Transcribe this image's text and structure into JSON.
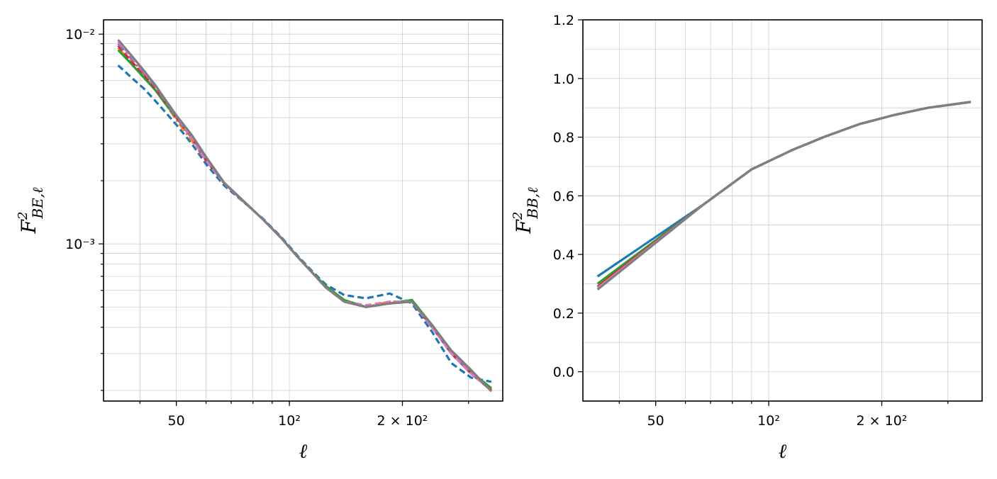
{
  "chart_data": [
    {
      "type": "line",
      "title": "",
      "xlabel": "ℓ",
      "ylabel": "F²_{BE,ℓ}",
      "xscale": "log",
      "yscale": "log",
      "xlim": [
        32,
        370
      ],
      "ylim": [
        0.000178,
        0.0117
      ],
      "grid": "major and minor",
      "x_ticks": [
        {
          "value": 50,
          "label": "50"
        },
        {
          "value": 100,
          "label": "10²"
        },
        {
          "value": 200,
          "label": "2 × 10²"
        }
      ],
      "y_ticks": [
        {
          "value": 0.01,
          "label": "10⁻²"
        },
        {
          "value": 0.001,
          "label": "10⁻³"
        }
      ],
      "x": [
        35,
        38,
        41,
        44,
        47,
        50,
        55,
        60,
        67,
        75,
        85,
        95,
        105,
        115,
        125,
        140,
        160,
        185,
        212,
        240,
        270,
        305,
        345
      ],
      "series": [
        {
          "color": "#1f77b4",
          "linestyle": "dashed",
          "values": [
            0.0071,
            0.0062,
            0.0055,
            0.0048,
            0.0042,
            0.0037,
            0.003,
            0.0024,
            0.0019,
            0.0016,
            0.00132,
            0.00108,
            0.00088,
            0.00074,
            0.00064,
            0.00057,
            0.00055,
            0.00058,
            0.00052,
            0.00038,
            0.00027,
            0.00023,
            0.00022
          ]
        },
        {
          "color": "#ff7f0e",
          "linestyle": "dashdot",
          "values": [
            0.0086,
            0.0073,
            0.0063,
            0.0054,
            0.0046,
            0.0039,
            0.0031,
            0.0025,
            0.00195,
            0.00161,
            0.00131,
            0.00107,
            0.00087,
            0.00073,
            0.00062,
            0.00053,
            0.0005,
            0.00053,
            0.00053,
            0.0004,
            0.0003,
            0.00024,
            0.000202
          ]
        },
        {
          "color": "#2ca02c",
          "linestyle": "solid",
          "values": [
            0.0084,
            0.0072,
            0.0062,
            0.0054,
            0.0046,
            0.004,
            0.0032,
            0.0025,
            0.00195,
            0.00161,
            0.00131,
            0.00107,
            0.00087,
            0.00073,
            0.00063,
            0.00054,
            0.0005,
            0.00052,
            0.00054,
            0.00041,
            0.0003,
            0.000245,
            0.000205
          ]
        },
        {
          "color": "#d62728",
          "linestyle": "dashed",
          "values": [
            0.0088,
            0.0074,
            0.0064,
            0.0055,
            0.0047,
            0.004,
            0.0032,
            0.0025,
            0.00195,
            0.00161,
            0.00131,
            0.00107,
            0.00087,
            0.00073,
            0.00062,
            0.00053,
            0.0005,
            0.00052,
            0.00053,
            0.0004,
            0.0003,
            0.00024,
            0.000201
          ]
        },
        {
          "color": "#9467bd",
          "linestyle": "dashdot",
          "values": [
            0.009,
            0.0076,
            0.0065,
            0.0056,
            0.0047,
            0.004,
            0.0032,
            0.0025,
            0.00195,
            0.00161,
            0.00131,
            0.00107,
            0.00087,
            0.00073,
            0.00062,
            0.00053,
            0.0005,
            0.00052,
            0.00053,
            0.0004,
            0.0003,
            0.00024,
            0.0002
          ]
        },
        {
          "color": "#e377c2",
          "linestyle": "dashed",
          "values": [
            0.0092,
            0.0078,
            0.0066,
            0.0057,
            0.0048,
            0.0041,
            0.0032,
            0.0025,
            0.00195,
            0.00161,
            0.00131,
            0.00107,
            0.00087,
            0.00073,
            0.00062,
            0.00053,
            0.00051,
            0.00053,
            0.00053,
            0.0004,
            0.0003,
            0.00024,
            0.0002
          ]
        },
        {
          "color": "#7f7f7f",
          "linestyle": "solid",
          "values": [
            0.0094,
            0.0079,
            0.0067,
            0.0057,
            0.0048,
            0.0041,
            0.0033,
            0.0026,
            0.00196,
            0.00162,
            0.00131,
            0.00107,
            0.00087,
            0.00073,
            0.00062,
            0.00053,
            0.0005,
            0.00052,
            0.00053,
            0.00041,
            0.00031,
            0.00025,
            0.000198
          ]
        }
      ]
    },
    {
      "type": "line",
      "title": "",
      "xlabel": "ℓ",
      "ylabel": "F²_{BB,ℓ}",
      "xscale": "log",
      "yscale": "linear",
      "xlim": [
        32,
        370
      ],
      "ylim": [
        -0.1,
        1.2
      ],
      "grid": "major and minor",
      "x_ticks": [
        {
          "value": 50,
          "label": "50"
        },
        {
          "value": 100,
          "label": "10²"
        },
        {
          "value": 200,
          "label": "2 × 10²"
        }
      ],
      "y_ticks": [
        {
          "value": 0.0,
          "label": "0.0"
        },
        {
          "value": 0.2,
          "label": "0.2"
        },
        {
          "value": 0.4,
          "label": "0.4"
        },
        {
          "value": 0.6,
          "label": "0.6"
        },
        {
          "value": 0.8,
          "label": "0.8"
        },
        {
          "value": 1.0,
          "label": "1.0"
        },
        {
          "value": 1.2,
          "label": "1.2"
        }
      ],
      "x": [
        35,
        67,
        90,
        115,
        140,
        175,
        215,
        265,
        345
      ],
      "series": [
        {
          "color": "#1f77b4",
          "linestyle": "solid",
          "values": [
            0.325,
            0.57,
            0.69,
            0.755,
            0.8,
            0.845,
            0.875,
            0.9,
            0.92
          ]
        },
        {
          "color": "#2ca02c",
          "linestyle": "solid",
          "values": [
            0.3,
            0.57,
            0.69,
            0.755,
            0.8,
            0.845,
            0.875,
            0.9,
            0.92
          ]
        },
        {
          "color": "#d62728",
          "linestyle": "solid",
          "values": [
            0.29,
            0.57,
            0.69,
            0.755,
            0.8,
            0.845,
            0.875,
            0.9,
            0.92
          ]
        },
        {
          "color": "#e377c2",
          "linestyle": "solid",
          "values": [
            0.285,
            0.57,
            0.69,
            0.755,
            0.8,
            0.845,
            0.875,
            0.9,
            0.92
          ]
        },
        {
          "color": "#7f7f7f",
          "linestyle": "solid",
          "values": [
            0.28,
            0.57,
            0.69,
            0.755,
            0.8,
            0.845,
            0.875,
            0.9,
            0.92
          ]
        }
      ]
    }
  ]
}
